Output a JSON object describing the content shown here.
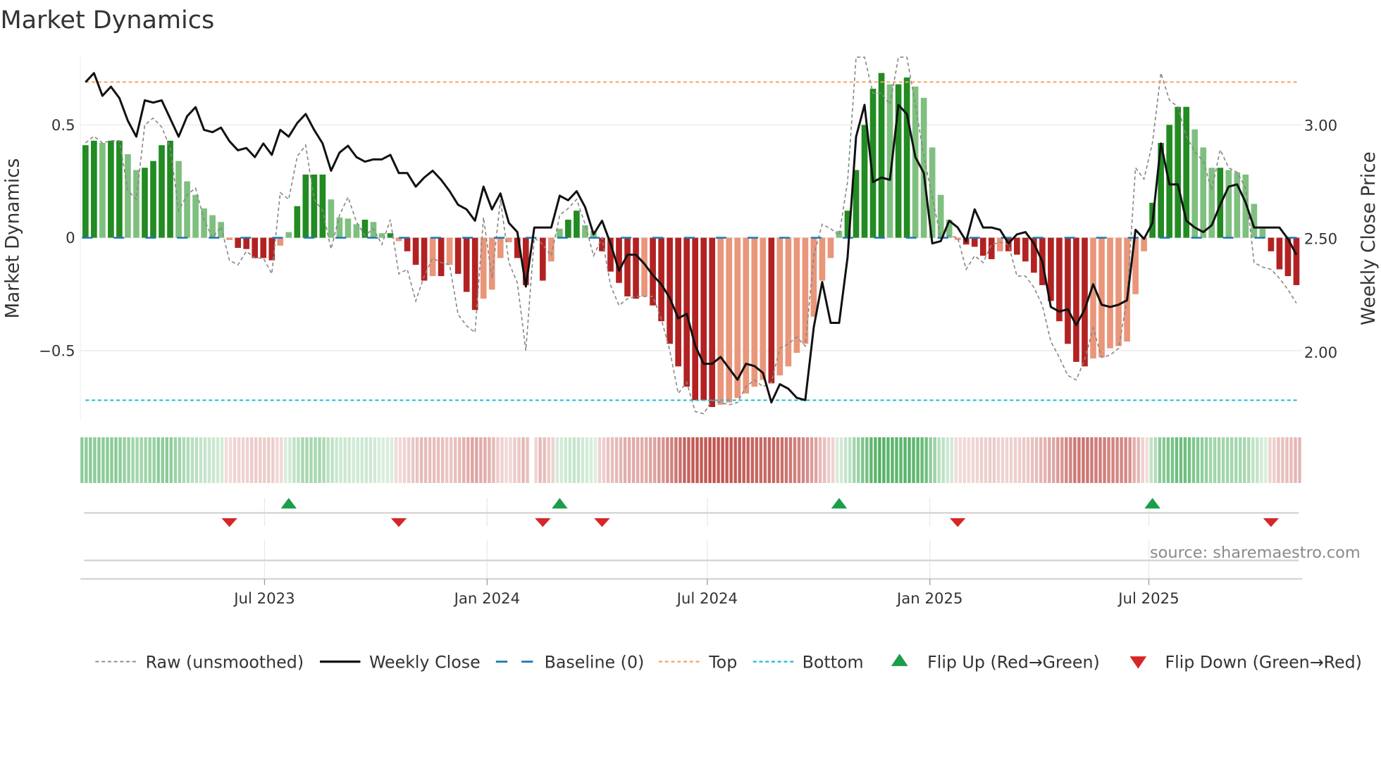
{
  "chart_data": {
    "type": "bar",
    "title": "Market Dynamics",
    "ylabel": "Market Dynamics",
    "ylabel_right": "Weekly Close Price",
    "ylim": [
      -0.81,
      0.8
    ],
    "ylim_right": [
      1.7,
      3.3
    ],
    "yticks": [
      {
        "value": 0.5,
        "label": "0.5"
      },
      {
        "value": 0,
        "label": "0"
      },
      {
        "value": -0.5,
        "label": "−0.5"
      }
    ],
    "yticks_right": [
      {
        "value": 3.0,
        "label": "3.00"
      },
      {
        "value": 2.5,
        "label": "2.50"
      },
      {
        "value": 2.0,
        "label": "2.00"
      }
    ],
    "start_date": "2023-02-03",
    "frequency": "weekly",
    "xticks": [
      {
        "date": "2023-07-01",
        "label": "Jul 2023"
      },
      {
        "date": "2024-01-01",
        "label": "Jan 2024"
      },
      {
        "date": "2024-07-01",
        "label": "Jul 2024"
      },
      {
        "date": "2025-01-01",
        "label": "Jan 2025"
      },
      {
        "date": "2025-07-01",
        "label": "Jul 2025"
      }
    ],
    "top_threshold": 0.69,
    "bottom_threshold": -0.72,
    "baseline": 0,
    "momentum": [
      0.41,
      0.43,
      0.42,
      0.43,
      0.43,
      0.37,
      0.3,
      0.31,
      0.34,
      0.41,
      0.43,
      0.34,
      0.25,
      0.19,
      0.13,
      0.1,
      0.07,
      -0.01,
      -0.045,
      -0.05,
      -0.09,
      -0.09,
      -0.1,
      -0.035,
      0.025,
      0.14,
      0.28,
      0.28,
      0.28,
      0.17,
      0.09,
      0.085,
      0.06,
      0.08,
      0.07,
      0.02,
      0.02,
      -0.015,
      -0.06,
      -0.12,
      -0.19,
      -0.17,
      -0.17,
      -0.12,
      -0.16,
      -0.24,
      -0.32,
      -0.27,
      -0.23,
      -0.09,
      -0.02,
      -0.09,
      -0.21,
      0.0,
      -0.19,
      -0.105,
      0.04,
      0.08,
      0.12,
      0.055,
      0.03,
      -0.06,
      -0.15,
      -0.2,
      -0.26,
      -0.27,
      -0.26,
      -0.3,
      -0.37,
      -0.47,
      -0.57,
      -0.66,
      -0.72,
      -0.72,
      -0.75,
      -0.74,
      -0.73,
      -0.71,
      -0.69,
      -0.66,
      -0.63,
      -0.645,
      -0.61,
      -0.57,
      -0.51,
      -0.47,
      -0.35,
      -0.19,
      -0.09,
      0.03,
      0.12,
      0.3,
      0.5,
      0.66,
      0.73,
      0.68,
      0.68,
      0.71,
      0.67,
      0.62,
      0.4,
      0.19,
      0.08,
      -0.01,
      -0.03,
      -0.04,
      -0.08,
      -0.095,
      -0.06,
      -0.06,
      -0.075,
      -0.105,
      -0.155,
      -0.21,
      -0.28,
      -0.37,
      -0.47,
      -0.55,
      -0.57,
      -0.535,
      -0.53,
      -0.49,
      -0.48,
      -0.46,
      -0.25,
      -0.06,
      0.155,
      0.42,
      0.5,
      0.58,
      0.58,
      0.48,
      0.4,
      0.31,
      0.31,
      0.3,
      0.29,
      0.28,
      0.15,
      0.04,
      -0.06,
      -0.14,
      -0.17,
      -0.21
    ],
    "raw": [
      0.42,
      0.45,
      0.42,
      0.43,
      0.43,
      0.21,
      0.17,
      0.5,
      0.53,
      0.49,
      0.4,
      0.12,
      0.19,
      0.22,
      0.08,
      0.0,
      0.05,
      -0.1,
      -0.12,
      -0.06,
      -0.09,
      -0.09,
      -0.16,
      0.2,
      0.17,
      0.36,
      0.41,
      0.17,
      0.12,
      -0.05,
      0.1,
      0.18,
      0.07,
      0.01,
      0.04,
      -0.03,
      0.08,
      -0.16,
      -0.14,
      -0.28,
      -0.17,
      -0.09,
      -0.11,
      -0.12,
      -0.34,
      -0.39,
      -0.42,
      0.09,
      -0.18,
      0.17,
      -0.11,
      -0.2,
      -0.5,
      0.0,
      -0.03,
      -0.08,
      0.1,
      0.13,
      0.17,
      0.06,
      -0.08,
      0.0,
      -0.21,
      -0.3,
      -0.27,
      -0.26,
      -0.26,
      -0.26,
      -0.36,
      -0.5,
      -0.69,
      -0.64,
      -0.77,
      -0.78,
      -0.72,
      -0.73,
      -0.74,
      -0.73,
      -0.66,
      -0.63,
      -0.66,
      -0.64,
      -0.49,
      -0.47,
      -0.44,
      -0.48,
      -0.08,
      0.06,
      0.04,
      0.01,
      0.25,
      0.8,
      0.81,
      0.64,
      0.64,
      0.59,
      0.8,
      0.81,
      0.59,
      0.36,
      0.18,
      0.0,
      0.01,
      0.0,
      -0.14,
      -0.08,
      -0.11,
      -0.03,
      -0.02,
      -0.03,
      -0.17,
      -0.17,
      -0.22,
      -0.3,
      -0.46,
      -0.53,
      -0.61,
      -0.63,
      -0.54,
      -0.4,
      -0.53,
      -0.52,
      -0.49,
      -0.27,
      0.31,
      0.26,
      0.42,
      0.73,
      0.61,
      0.58,
      0.45,
      0.38,
      0.34,
      0.21,
      0.39,
      0.31,
      0.29,
      0.22,
      -0.11,
      -0.13,
      -0.14,
      -0.18,
      -0.23,
      -0.29
    ],
    "weekly_close": [
      3.19,
      3.23,
      3.13,
      3.17,
      3.12,
      3.02,
      2.95,
      3.11,
      3.1,
      3.11,
      3.03,
      2.95,
      3.04,
      3.08,
      2.98,
      2.97,
      2.99,
      2.93,
      2.89,
      2.9,
      2.86,
      2.92,
      2.87,
      2.98,
      2.95,
      3.01,
      3.05,
      2.98,
      2.92,
      2.8,
      2.88,
      2.91,
      2.86,
      2.84,
      2.85,
      2.85,
      2.87,
      2.79,
      2.79,
      2.73,
      2.77,
      2.8,
      2.76,
      2.71,
      2.65,
      2.63,
      2.58,
      2.73,
      2.63,
      2.7,
      2.57,
      2.53,
      2.29,
      2.55,
      2.55,
      2.55,
      2.69,
      2.67,
      2.71,
      2.64,
      2.52,
      2.58,
      2.48,
      2.36,
      2.43,
      2.43,
      2.39,
      2.34,
      2.3,
      2.24,
      2.15,
      2.17,
      2.03,
      1.95,
      1.95,
      1.98,
      1.93,
      1.88,
      1.95,
      1.94,
      1.91,
      1.78,
      1.86,
      1.84,
      1.8,
      1.79,
      2.11,
      2.31,
      2.13,
      2.13,
      2.42,
      2.95,
      3.09,
      2.75,
      2.77,
      2.76,
      3.09,
      3.05,
      2.86,
      2.79,
      2.48,
      2.49,
      2.58,
      2.55,
      2.49,
      2.63,
      2.55,
      2.55,
      2.54,
      2.48,
      2.52,
      2.53,
      2.48,
      2.4,
      2.2,
      2.18,
      2.19,
      2.12,
      2.19,
      2.3,
      2.21,
      2.2,
      2.21,
      2.23,
      2.54,
      2.5,
      2.57,
      2.92,
      2.74,
      2.74,
      2.58,
      2.55,
      2.53,
      2.56,
      2.65,
      2.73,
      2.74,
      2.66,
      2.55,
      2.55,
      2.55,
      2.55,
      2.5,
      2.43
    ],
    "legend_position": "bottom",
    "legend": [
      {
        "key": "raw",
        "label": "Raw (unsmoothed)"
      },
      {
        "key": "close",
        "label": "Weekly Close"
      },
      {
        "key": "baseline",
        "label": "Baseline (0)"
      },
      {
        "key": "top",
        "label": "Top"
      },
      {
        "key": "bottom",
        "label": "Bottom"
      },
      {
        "key": "flip_up",
        "label": "Flip Up (Red→Green)"
      },
      {
        "key": "flip_down",
        "label": "Flip Down (Green→Red)"
      }
    ],
    "source": "source: sharemaestro.com",
    "colors": {
      "green_dark": "#228b22",
      "green_light": "#7fbf7f",
      "red_dark": "#b22222",
      "red_light": "#e9967a",
      "close": "#111111",
      "raw": "#888888",
      "baseline": "#1f77b4",
      "top": "#f4a460",
      "bottom": "#17becf",
      "flip_up": "#1a9e4a",
      "flip_down": "#d62728",
      "strip_green": "#3aa64f",
      "strip_red": "#b8403a"
    }
  }
}
